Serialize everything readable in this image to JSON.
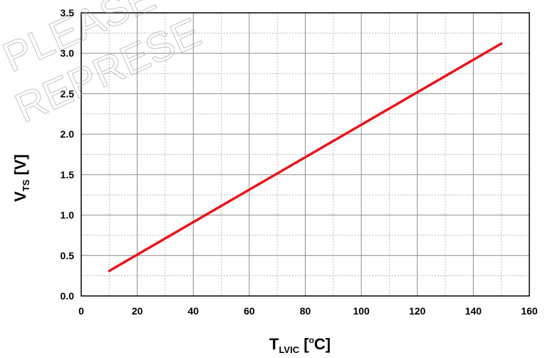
{
  "chart_data": {
    "type": "line",
    "xlabel": {
      "main": "T",
      "sub": "LVIC",
      "unit_open": " [",
      "unit_sup": "o",
      "unit_close": "C]"
    },
    "ylabel": {
      "main": "V",
      "sub": "TS",
      "unit": " [V]"
    },
    "xlim": [
      0,
      160
    ],
    "ylim": [
      0,
      3.5
    ],
    "xticks": [
      0,
      20,
      40,
      60,
      80,
      100,
      120,
      140,
      160
    ],
    "yticks": [
      0.0,
      0.5,
      1.0,
      1.5,
      2.0,
      2.5,
      3.0,
      3.5
    ],
    "xtick_labels": [
      "0",
      "20",
      "40",
      "60",
      "80",
      "100",
      "120",
      "140",
      "160"
    ],
    "ytick_labels": [
      "0.0",
      "0.5",
      "1.0",
      "1.5",
      "2.0",
      "2.5",
      "3.0",
      "3.5"
    ],
    "grid": true,
    "minor_grid": true,
    "series": [
      {
        "color": "#e8141b",
        "x": [
          10,
          150
        ],
        "y": [
          0.31,
          3.12
        ]
      }
    ],
    "watermark": [
      "PLEASE",
      "REPRESE"
    ]
  }
}
